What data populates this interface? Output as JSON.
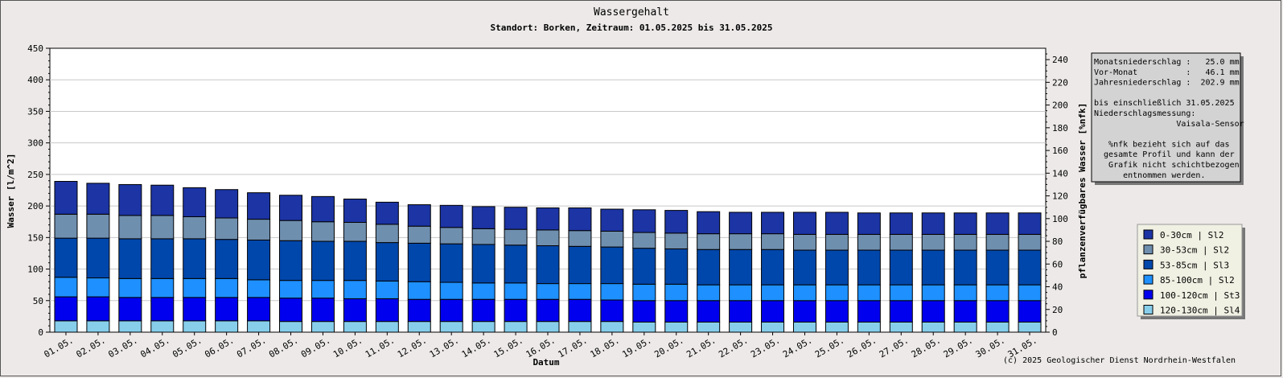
{
  "chart_data": {
    "type": "bar",
    "stacked": true,
    "title": "Wassergehalt",
    "subtitle": "Standort: Borken, Zeitraum: 01.05.2025 bis 31.05.2025",
    "xlabel": "Datum",
    "ylabel": "Wasser [l/m^2]",
    "ylabel_right": "pflanzenverfügbares Wasser [%nfk]",
    "ylim": [
      0,
      450
    ],
    "yticks": [
      0,
      50,
      100,
      150,
      200,
      250,
      300,
      350,
      400,
      450
    ],
    "ylim_right": [
      0,
      250
    ],
    "yticks_right": [
      0,
      20,
      40,
      60,
      80,
      100,
      120,
      140,
      160,
      180,
      200,
      220,
      240
    ],
    "grid": true,
    "legend_position": "right",
    "categories": [
      "01.05.",
      "02.05.",
      "03.05.",
      "04.05.",
      "05.05.",
      "06.05.",
      "07.05.",
      "08.05.",
      "09.05.",
      "10.05.",
      "11.05.",
      "12.05.",
      "13.05.",
      "14.05.",
      "15.05.",
      "16.05.",
      "17.05.",
      "18.05.",
      "19.05.",
      "20.05.",
      "21.05.",
      "22.05.",
      "23.05.",
      "24.05.",
      "25.05.",
      "26.05.",
      "27.05.",
      "28.05.",
      "29.05.",
      "30.05.",
      "31.05."
    ],
    "series": [
      {
        "name": "120-130cm | Sl4",
        "color": "#87ceeb",
        "values": [
          18,
          18,
          18,
          18,
          18,
          18,
          18,
          17,
          17,
          17,
          17,
          17,
          17,
          17,
          17,
          17,
          17,
          17,
          16,
          16,
          16,
          16,
          16,
          16,
          16,
          16,
          16,
          16,
          16,
          16,
          16
        ]
      },
      {
        "name": "100-120cm | St3",
        "color": "#0000ee",
        "values": [
          38,
          38,
          37,
          37,
          37,
          37,
          37,
          37,
          37,
          36,
          36,
          35,
          35,
          35,
          35,
          35,
          35,
          34,
          34,
          34,
          34,
          34,
          34,
          34,
          34,
          34,
          34,
          34,
          34,
          34,
          34
        ]
      },
      {
        "name": "85-100cm | Sl2",
        "color": "#1e90ff",
        "values": [
          31,
          30,
          30,
          30,
          30,
          30,
          28,
          28,
          28,
          29,
          28,
          28,
          27,
          26,
          26,
          25,
          25,
          26,
          26,
          26,
          25,
          25,
          25,
          25,
          25,
          25,
          25,
          25,
          25,
          25,
          25
        ]
      },
      {
        "name": "53-85cm | Sl3",
        "color": "#0047ab",
        "values": [
          62,
          63,
          63,
          63,
          63,
          62,
          63,
          63,
          62,
          62,
          61,
          61,
          61,
          61,
          60,
          60,
          59,
          58,
          57,
          56,
          56,
          56,
          56,
          55,
          55,
          55,
          55,
          55,
          55,
          55,
          55
        ]
      },
      {
        "name": "30-53cm | Sl2",
        "color": "#6f8faf",
        "values": [
          38,
          38,
          37,
          37,
          35,
          34,
          33,
          32,
          31,
          30,
          29,
          27,
          26,
          25,
          25,
          25,
          25,
          25,
          25,
          25,
          25,
          25,
          25,
          25,
          25,
          25,
          25,
          25,
          25,
          25,
          25
        ]
      },
      {
        "name": "0-30cm | Sl2",
        "color": "#1c34a4",
        "values": [
          52,
          49,
          49,
          48,
          46,
          45,
          42,
          40,
          40,
          37,
          35,
          34,
          35,
          35,
          35,
          35,
          36,
          35,
          36,
          36,
          35,
          34,
          34,
          35,
          35,
          34,
          34,
          34,
          34,
          34,
          34
        ]
      }
    ],
    "info_box": [
      "Monatsniederschlag :   25.0 mm",
      "Vor-Monat          :   46.1 mm",
      "Jahresniederschlag :  202.9 mm",
      "",
      "bis einschließlich 31.05.2025",
      "Niederschlagsmessung:",
      "                 Vaisala-Sensor",
      "",
      "   %nfk bezieht sich auf das",
      "  gesamte Profil und kann der",
      "   Grafik nicht schichtbezogen",
      "      entnommen werden."
    ],
    "copyright": "(c) 2025 Geologischer Dienst Nordrhein-Westfalen"
  }
}
